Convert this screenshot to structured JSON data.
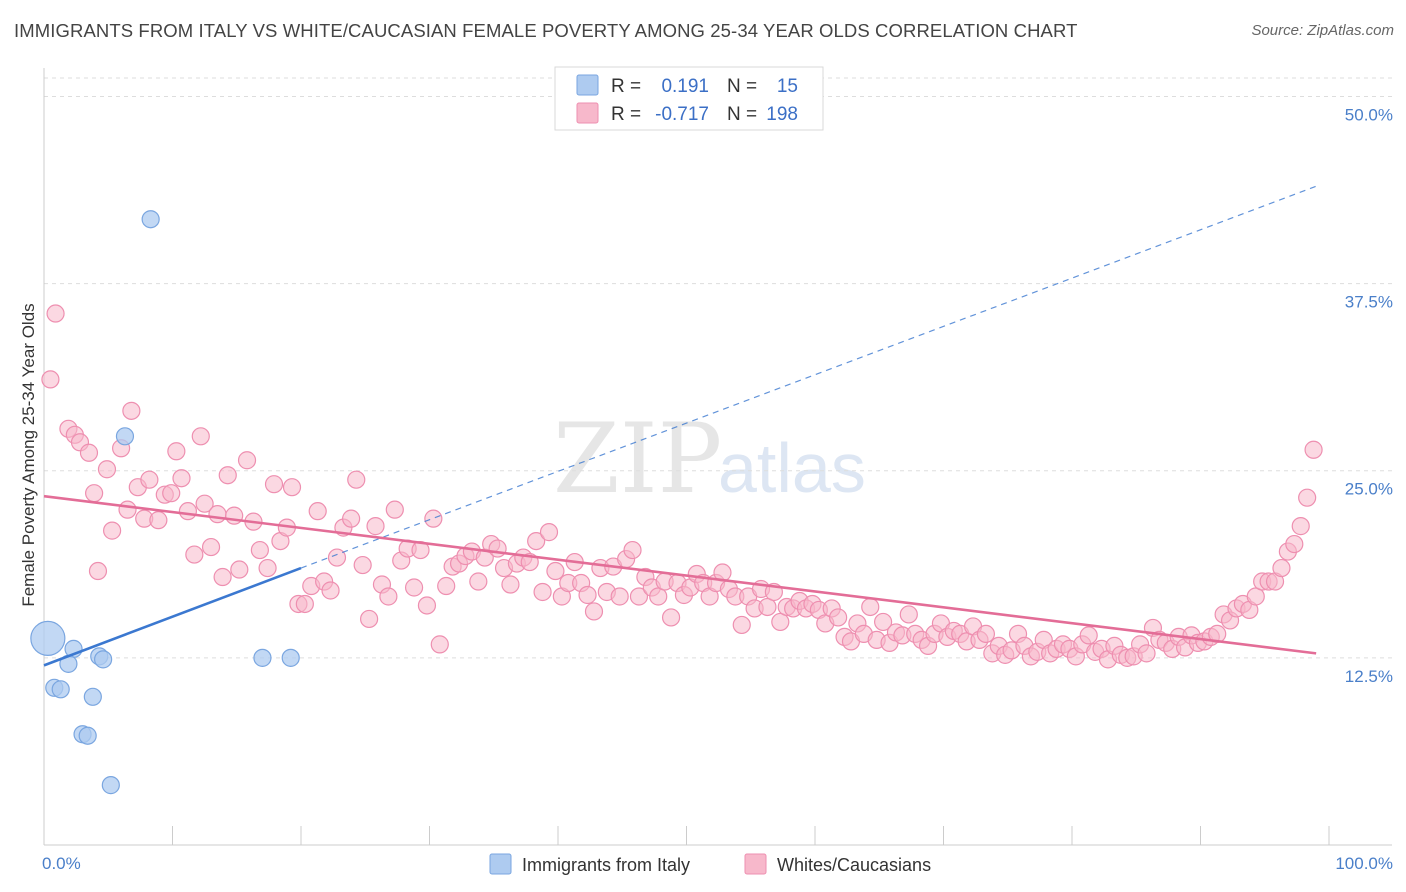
{
  "title": "IMMIGRANTS FROM ITALY VS WHITE/CAUCASIAN FEMALE POVERTY AMONG 25-34 YEAR OLDS CORRELATION CHART",
  "source": "Source: ZipAtlas.com",
  "watermark": {
    "zip": "ZIP",
    "atlas": "atlas"
  },
  "colors": {
    "italy_fill": "#aecbf0",
    "italy_stroke": "#7aa6e0",
    "italy_line": "#3b78d0",
    "white_fill": "#f7b8cb",
    "white_stroke": "#ee8fb0",
    "white_line": "#e36d97",
    "tick_text": "#4a7fc9",
    "grid": "#dddddd"
  },
  "legend": {
    "rows": [
      {
        "r_label": "R =",
        "r_value": "0.191",
        "n_label": "N =",
        "n_value": "15"
      },
      {
        "r_label": "R =",
        "r_value": "-0.717",
        "n_label": "N =",
        "n_value": "198"
      }
    ]
  },
  "chart_data": {
    "type": "scatter",
    "title": "IMMIGRANTS FROM ITALY VS WHITE/CAUCASIAN FEMALE POVERTY AMONG 25-34 YEAR OLDS CORRELATION CHART",
    "xlabel": "",
    "ylabel": "Female Poverty Among 25-34 Year Olds",
    "xlim": [
      0,
      100
    ],
    "ylim": [
      0,
      51.5
    ],
    "x_tick_labels": [
      "0.0%",
      "100.0%"
    ],
    "y_ticks": [
      12.5,
      25.0,
      37.5,
      50.0
    ],
    "y_tick_labels": [
      "12.5%",
      "25.0%",
      "37.5%",
      "50.0%"
    ],
    "grid": true,
    "legend_position": "top-center",
    "series": [
      {
        "name": "Immigrants from Italy",
        "r": 0.191,
        "n": 15,
        "trend": {
          "x0": 0,
          "y0": 12.0,
          "x1": 20,
          "y1": 18.5,
          "dashed_to_x": 99,
          "dashed_to_y": 44.0
        },
        "points": [
          [
            0.3,
            13.8,
            "big"
          ],
          [
            2.3,
            13.1
          ],
          [
            1.9,
            12.1
          ],
          [
            4.3,
            12.6
          ],
          [
            4.6,
            12.4
          ],
          [
            0.8,
            10.5
          ],
          [
            1.3,
            10.4
          ],
          [
            3.8,
            9.9
          ],
          [
            3.0,
            7.4
          ],
          [
            3.4,
            7.3
          ],
          [
            5.2,
            4.0
          ],
          [
            8.3,
            41.8
          ],
          [
            6.3,
            27.3
          ],
          [
            17.0,
            12.5
          ],
          [
            19.2,
            12.5
          ]
        ]
      },
      {
        "name": "Whites/Caucasians",
        "r": -0.717,
        "n": 198,
        "trend": {
          "x0": 0,
          "y0": 23.3,
          "x1": 99,
          "y1": 12.8
        },
        "points": [
          [
            0.9,
            35.5
          ],
          [
            0.5,
            31.1
          ],
          [
            1.9,
            27.8
          ],
          [
            2.4,
            27.4
          ],
          [
            2.8,
            26.9
          ],
          [
            3.5,
            26.2
          ],
          [
            3.9,
            23.5
          ],
          [
            4.2,
            18.3
          ],
          [
            4.9,
            25.1
          ],
          [
            5.3,
            21.0
          ],
          [
            6.0,
            26.5
          ],
          [
            6.5,
            22.4
          ],
          [
            6.8,
            29.0
          ],
          [
            7.3,
            23.9
          ],
          [
            7.8,
            21.8
          ],
          [
            8.2,
            24.4
          ],
          [
            8.9,
            21.7
          ],
          [
            9.4,
            23.4
          ],
          [
            9.9,
            23.5
          ],
          [
            10.3,
            26.3
          ],
          [
            10.7,
            24.5
          ],
          [
            11.2,
            22.3
          ],
          [
            11.7,
            19.4
          ],
          [
            12.2,
            27.3
          ],
          [
            12.5,
            22.8
          ],
          [
            13.0,
            19.9
          ],
          [
            13.5,
            22.1
          ],
          [
            13.9,
            17.9
          ],
          [
            14.3,
            24.7
          ],
          [
            14.8,
            22.0
          ],
          [
            15.2,
            18.4
          ],
          [
            15.8,
            25.7
          ],
          [
            16.3,
            21.6
          ],
          [
            16.8,
            19.7
          ],
          [
            17.4,
            18.5
          ],
          [
            17.9,
            24.1
          ],
          [
            18.4,
            20.3
          ],
          [
            18.9,
            21.2
          ],
          [
            19.3,
            23.9
          ],
          [
            19.8,
            16.1
          ],
          [
            20.3,
            16.1
          ],
          [
            20.8,
            17.3
          ],
          [
            21.3,
            22.3
          ],
          [
            21.8,
            17.6
          ],
          [
            22.3,
            17.0
          ],
          [
            22.8,
            19.2
          ],
          [
            23.3,
            21.2
          ],
          [
            23.9,
            21.8
          ],
          [
            24.3,
            24.4
          ],
          [
            24.8,
            18.7
          ],
          [
            25.3,
            15.1
          ],
          [
            25.8,
            21.3
          ],
          [
            26.3,
            17.4
          ],
          [
            26.8,
            16.6
          ],
          [
            27.3,
            22.4
          ],
          [
            27.8,
            19.0
          ],
          [
            28.3,
            19.8
          ],
          [
            28.8,
            17.2
          ],
          [
            29.3,
            19.7
          ],
          [
            29.8,
            16.0
          ],
          [
            30.3,
            21.8
          ],
          [
            30.8,
            13.4
          ],
          [
            31.3,
            17.3
          ],
          [
            31.8,
            18.6
          ],
          [
            32.3,
            18.8
          ],
          [
            32.8,
            19.3
          ],
          [
            33.3,
            19.6
          ],
          [
            33.8,
            17.6
          ],
          [
            34.3,
            19.2
          ],
          [
            34.8,
            20.1
          ],
          [
            35.3,
            19.8
          ],
          [
            35.8,
            18.5
          ],
          [
            36.3,
            17.4
          ],
          [
            36.8,
            18.8
          ],
          [
            37.3,
            19.2
          ],
          [
            37.8,
            18.9
          ],
          [
            38.3,
            20.3
          ],
          [
            38.8,
            16.9
          ],
          [
            39.3,
            20.9
          ],
          [
            39.8,
            18.3
          ],
          [
            40.3,
            16.6
          ],
          [
            40.8,
            17.5
          ],
          [
            41.3,
            18.9
          ],
          [
            41.8,
            17.5
          ],
          [
            42.3,
            16.7
          ],
          [
            42.8,
            15.6
          ],
          [
            43.3,
            18.5
          ],
          [
            43.8,
            16.9
          ],
          [
            44.3,
            18.6
          ],
          [
            44.8,
            16.6
          ],
          [
            45.3,
            19.1
          ],
          [
            45.8,
            19.7
          ],
          [
            46.3,
            16.6
          ],
          [
            46.8,
            17.9
          ],
          [
            47.3,
            17.2
          ],
          [
            47.8,
            16.6
          ],
          [
            48.3,
            17.6
          ],
          [
            48.8,
            15.2
          ],
          [
            49.3,
            17.5
          ],
          [
            49.8,
            16.7
          ],
          [
            50.3,
            17.2
          ],
          [
            50.8,
            18.1
          ],
          [
            51.3,
            17.5
          ],
          [
            51.8,
            16.6
          ],
          [
            52.3,
            17.5
          ],
          [
            52.8,
            18.2
          ],
          [
            53.3,
            17.1
          ],
          [
            53.8,
            16.6
          ],
          [
            54.3,
            14.7
          ],
          [
            54.8,
            16.6
          ],
          [
            55.3,
            15.8
          ],
          [
            55.8,
            17.1
          ],
          [
            56.3,
            15.9
          ],
          [
            56.8,
            16.9
          ],
          [
            57.3,
            14.9
          ],
          [
            57.8,
            15.9
          ],
          [
            58.3,
            15.8
          ],
          [
            58.8,
            16.3
          ],
          [
            59.3,
            15.8
          ],
          [
            59.8,
            16.1
          ],
          [
            60.3,
            15.7
          ],
          [
            60.8,
            14.8
          ],
          [
            61.3,
            15.8
          ],
          [
            61.8,
            15.2
          ],
          [
            62.3,
            13.9
          ],
          [
            62.8,
            13.6
          ],
          [
            63.3,
            14.8
          ],
          [
            63.8,
            14.1
          ],
          [
            64.3,
            15.9
          ],
          [
            64.8,
            13.7
          ],
          [
            65.3,
            14.9
          ],
          [
            65.8,
            13.5
          ],
          [
            66.3,
            14.2
          ],
          [
            66.8,
            14.0
          ],
          [
            67.3,
            15.4
          ],
          [
            67.8,
            14.1
          ],
          [
            68.3,
            13.7
          ],
          [
            68.8,
            13.3
          ],
          [
            69.3,
            14.1
          ],
          [
            69.8,
            14.8
          ],
          [
            70.3,
            13.9
          ],
          [
            70.8,
            14.3
          ],
          [
            71.3,
            14.1
          ],
          [
            71.8,
            13.6
          ],
          [
            72.3,
            14.6
          ],
          [
            72.8,
            13.7
          ],
          [
            73.3,
            14.1
          ],
          [
            73.8,
            12.8
          ],
          [
            74.3,
            13.3
          ],
          [
            74.8,
            12.7
          ],
          [
            75.3,
            13.0
          ],
          [
            75.8,
            14.1
          ],
          [
            76.3,
            13.3
          ],
          [
            76.8,
            12.6
          ],
          [
            77.3,
            12.9
          ],
          [
            77.8,
            13.7
          ],
          [
            78.3,
            12.8
          ],
          [
            78.8,
            13.1
          ],
          [
            79.3,
            13.4
          ],
          [
            79.8,
            13.1
          ],
          [
            80.3,
            12.6
          ],
          [
            80.8,
            13.4
          ],
          [
            81.3,
            14.0
          ],
          [
            81.8,
            12.9
          ],
          [
            82.3,
            13.1
          ],
          [
            82.8,
            12.4
          ],
          [
            83.3,
            13.3
          ],
          [
            83.8,
            12.7
          ],
          [
            84.3,
            12.5
          ],
          [
            84.8,
            12.6
          ],
          [
            85.3,
            13.4
          ],
          [
            85.8,
            12.8
          ],
          [
            86.3,
            14.5
          ],
          [
            86.8,
            13.7
          ],
          [
            87.3,
            13.5
          ],
          [
            87.8,
            13.1
          ],
          [
            88.3,
            13.9
          ],
          [
            88.8,
            13.2
          ],
          [
            89.3,
            14.0
          ],
          [
            89.8,
            13.5
          ],
          [
            90.3,
            13.6
          ],
          [
            90.8,
            13.9
          ],
          [
            91.3,
            14.1
          ],
          [
            91.8,
            15.4
          ],
          [
            92.3,
            15.0
          ],
          [
            92.8,
            15.8
          ],
          [
            93.3,
            16.1
          ],
          [
            93.8,
            15.7
          ],
          [
            94.3,
            16.6
          ],
          [
            94.8,
            17.6
          ],
          [
            95.3,
            17.6
          ],
          [
            95.8,
            17.6
          ],
          [
            96.3,
            18.5
          ],
          [
            96.8,
            19.6
          ],
          [
            97.3,
            20.1
          ],
          [
            97.8,
            21.3
          ],
          [
            98.3,
            23.2
          ],
          [
            98.8,
            26.4
          ]
        ]
      }
    ]
  }
}
